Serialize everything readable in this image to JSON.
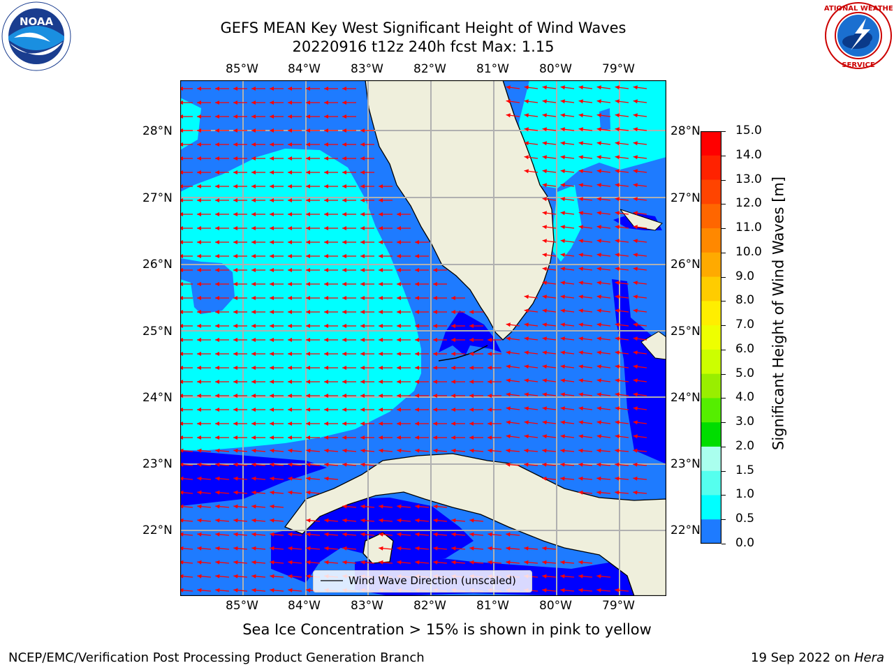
{
  "header": {
    "title_line1": "GEFS MEAN Key West Significant Height of Wind Waves",
    "title_line2": "20220916 t12z 240h fcst   Max: 1.15"
  },
  "logos": {
    "left": {
      "name": "NOAA",
      "text": "NOAA",
      "ring_text": "NATIONAL OCEANIC AND ATMOSPHERIC ADMINISTRATION · U.S. DEPARTMENT OF COMMERCE"
    },
    "right": {
      "name": "National Weather Service",
      "ring_text": "NATIONAL WEATHER SERVICE"
    }
  },
  "map": {
    "lon_labels": [
      "85°W",
      "84°W",
      "83°W",
      "82°W",
      "81°W",
      "80°W",
      "79°W"
    ],
    "lat_labels": [
      "28°N",
      "27°N",
      "26°N",
      "25°N",
      "24°N",
      "23°N",
      "22°N"
    ],
    "legend_label": "Wind Wave Direction (unscaled)",
    "colors": {
      "land": "#efefdc",
      "coast": "#000000",
      "grid": "#b0b0b0",
      "arrow": "#ff0000",
      "band_0_0_5": "#0000ff",
      "band_0_5_1_0": "#1e7bff",
      "band_1_0_1_5": "#00ffff"
    }
  },
  "colorbar": {
    "label": "Significant Height of Wind Waves [m]",
    "ticks": [
      "15.0",
      "14.0",
      "13.0",
      "12.0",
      "11.0",
      "10.0",
      "9.0",
      "8.0",
      "7.0",
      "6.0",
      "5.0",
      "4.0",
      "3.0",
      "2.0",
      "1.5",
      "1.0",
      "0.5",
      "0.0"
    ],
    "colors_top_to_bottom": [
      "#ff0000",
      "#ff2200",
      "#ff4400",
      "#ff6600",
      "#ff8800",
      "#ffaa00",
      "#ffcc00",
      "#ffee00",
      "#eeff00",
      "#ccff00",
      "#99ee00",
      "#55ee00",
      "#00dd00",
      "#55ff88",
      "#aaffee",
      "#55ffee",
      "#00ffff",
      "#1e7bff",
      "#0000ff"
    ]
  },
  "notes": {
    "sea_ice": "Sea Ice Concentration > 15% is shown in pink to yellow"
  },
  "footer": {
    "left": "NCEP/EMC/Verification Post Processing Product Generation Branch",
    "right_date": "19 Sep 2022 on ",
    "right_host": "Hera"
  }
}
